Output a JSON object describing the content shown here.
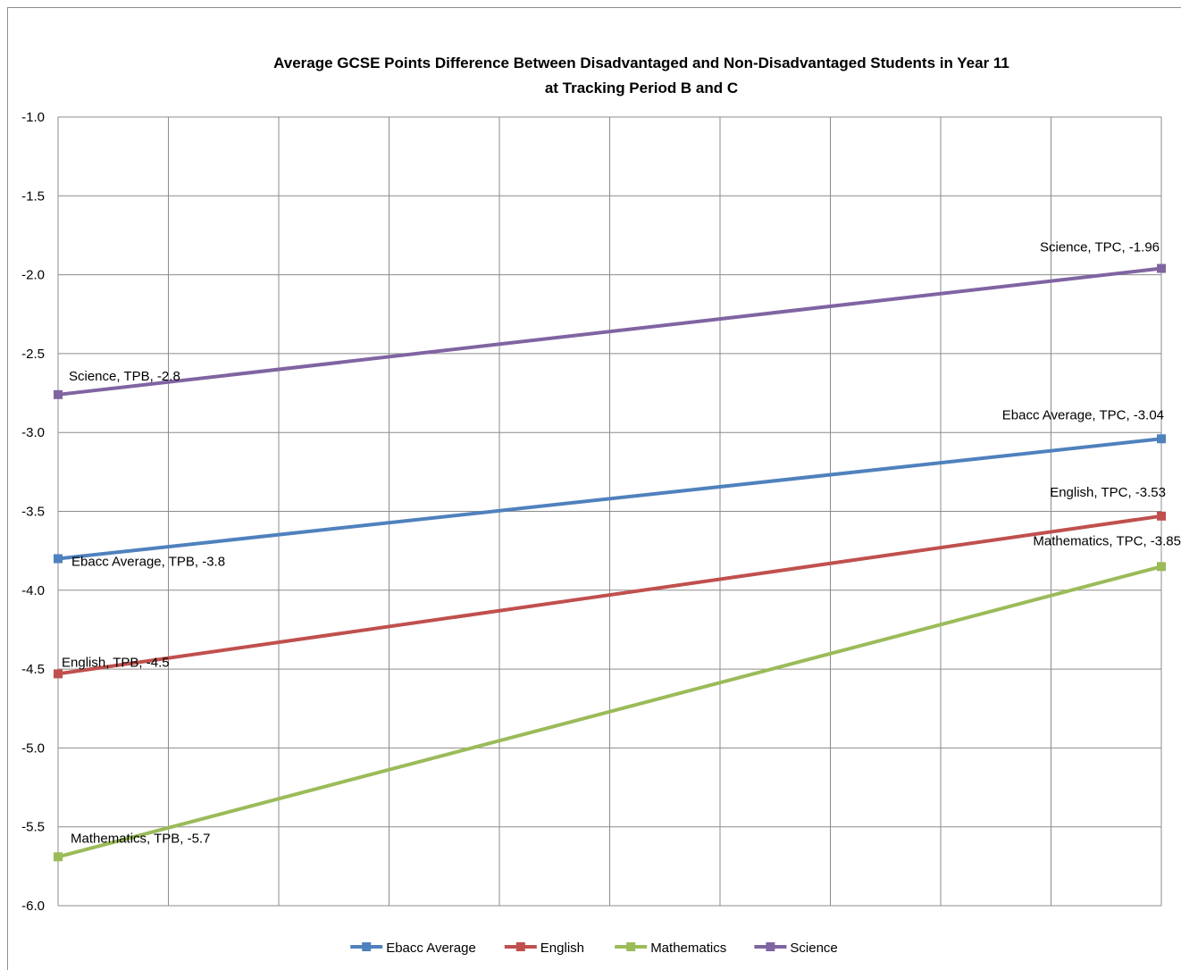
{
  "chart_data": {
    "type": "line",
    "title": [
      "Average GCSE Points Difference Between Disadvantaged and Non-Disadvantaged Students in Year 11",
      "at Tracking Period B and C"
    ],
    "xlabel": "",
    "ylabel": "",
    "ylim": [
      -6.0,
      -1.0
    ],
    "ytick_step": 0.5,
    "y_ticks": [
      "-1.0",
      "-1.5",
      "-2.0",
      "-2.5",
      "-3.0",
      "-3.5",
      "-4.0",
      "-4.5",
      "-5.0",
      "-5.5",
      "-6.0"
    ],
    "x": [
      "TPB",
      "TPC"
    ],
    "grid": true,
    "legend_position": "bottom",
    "series": [
      {
        "name": "Ebacc Average",
        "color": "#4f81bd",
        "values": [
          -3.8,
          -3.04
        ],
        "labels": [
          "Ebacc Average, TPB, -3.8",
          "Ebacc Average, TPC, -3.04"
        ]
      },
      {
        "name": "English",
        "color": "#c0504d",
        "values": [
          -4.53,
          -3.53
        ],
        "labels": [
          "English, TPB, -4.5",
          "English, TPC, -3.53"
        ]
      },
      {
        "name": "Mathematics",
        "color": "#9bbb59",
        "values": [
          -5.69,
          -3.85
        ],
        "labels": [
          "Mathematics, TPB, -5.7",
          "Mathematics, TPC, -3.85"
        ]
      },
      {
        "name": "Science",
        "color": "#8064a2",
        "values": [
          -2.76,
          -1.96
        ],
        "labels": [
          "Science, TPB, -2.8",
          "Science, TPC, -1.96"
        ]
      }
    ]
  }
}
